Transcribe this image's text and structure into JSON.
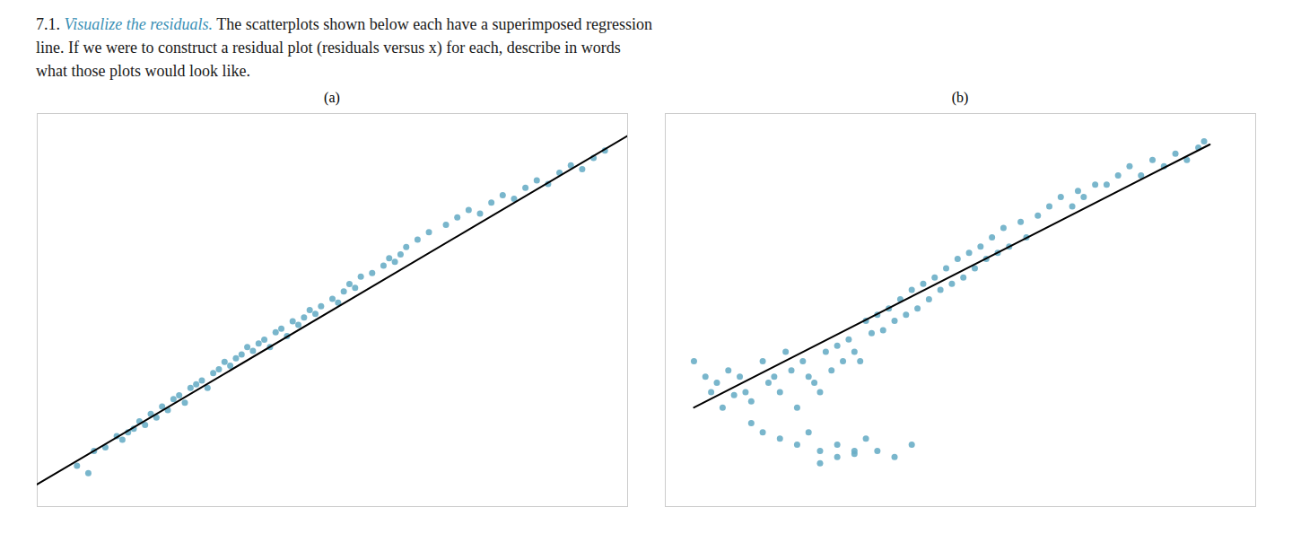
{
  "title": [
    [
      {
        "text": "7.1. ",
        "color": "#1a1a1a"
      },
      {
        "text": "Visualize the residuals.",
        "color": "#3a8fb5",
        "style": "italic"
      },
      {
        "text": " The scatterplots shown below each have a superimposed regression",
        "color": "#1a1a1a"
      }
    ],
    [
      {
        "text": "line. If we were to construct a residual plot (residuals versus x) for each, describe in words",
        "color": "#1a1a1a"
      }
    ],
    [
      {
        "text": "what those plots would look like.",
        "color": "#1a1a1a"
      }
    ]
  ],
  "chart_data": [
    {
      "type": "scatter",
      "title": "(a)",
      "xlim": [
        -0.02,
        1.02
      ],
      "ylim": [
        -0.08,
        0.98
      ],
      "tick_labels": false,
      "grid": false,
      "series": [
        {
          "type": "scatter",
          "color": "#6aaec6",
          "x": [
            0.05,
            0.07,
            0.08,
            0.1,
            0.12,
            0.13,
            0.14,
            0.15,
            0.16,
            0.17,
            0.18,
            0.19,
            0.2,
            0.21,
            0.22,
            0.23,
            0.24,
            0.25,
            0.26,
            0.27,
            0.28,
            0.29,
            0.3,
            0.31,
            0.32,
            0.33,
            0.34,
            0.35,
            0.36,
            0.37,
            0.38,
            0.39,
            0.4,
            0.41,
            0.42,
            0.43,
            0.44,
            0.45,
            0.46,
            0.47,
            0.48,
            0.5,
            0.51,
            0.52,
            0.53,
            0.54,
            0.55,
            0.57,
            0.59,
            0.6,
            0.61,
            0.62,
            0.63,
            0.65,
            0.67,
            0.7,
            0.72,
            0.74,
            0.76,
            0.78,
            0.8,
            0.82,
            0.84,
            0.86,
            0.88,
            0.9,
            0.92,
            0.94,
            0.96,
            0.98
          ],
          "values": [
            0.03,
            0.01,
            0.07,
            0.08,
            0.11,
            0.1,
            0.12,
            0.13,
            0.15,
            0.14,
            0.17,
            0.16,
            0.19,
            0.18,
            0.21,
            0.22,
            0.2,
            0.24,
            0.25,
            0.26,
            0.24,
            0.28,
            0.29,
            0.31,
            0.3,
            0.32,
            0.33,
            0.35,
            0.34,
            0.36,
            0.37,
            0.35,
            0.39,
            0.4,
            0.38,
            0.42,
            0.41,
            0.43,
            0.45,
            0.44,
            0.46,
            0.48,
            0.47,
            0.5,
            0.52,
            0.51,
            0.54,
            0.55,
            0.57,
            0.59,
            0.58,
            0.6,
            0.62,
            0.64,
            0.66,
            0.68,
            0.7,
            0.72,
            0.71,
            0.74,
            0.76,
            0.75,
            0.78,
            0.8,
            0.79,
            0.82,
            0.84,
            0.83,
            0.86,
            0.88
          ]
        },
        {
          "type": "line",
          "color": "black",
          "x": [
            -0.02,
            1.02
          ],
          "values": [
            -0.02,
            0.92
          ]
        }
      ]
    },
    {
      "type": "scatter",
      "title": "(b)",
      "xlim": [
        0.05,
        1.08
      ],
      "ylim": [
        -0.12,
        1.15
      ],
      "tick_labels": false,
      "grid": false,
      "series": [
        {
          "type": "scatter",
          "color": "#6aaec6",
          "x": [
            0.1,
            0.12,
            0.13,
            0.14,
            0.15,
            0.16,
            0.17,
            0.18,
            0.19,
            0.2,
            0.22,
            0.23,
            0.24,
            0.25,
            0.26,
            0.27,
            0.28,
            0.29,
            0.3,
            0.31,
            0.32,
            0.33,
            0.34,
            0.35,
            0.36,
            0.37,
            0.38,
            0.39,
            0.4,
            0.41,
            0.42,
            0.43,
            0.44,
            0.45,
            0.46,
            0.47,
            0.48,
            0.49,
            0.5,
            0.51,
            0.52,
            0.53,
            0.54,
            0.55,
            0.56,
            0.57,
            0.58,
            0.59,
            0.6,
            0.61,
            0.62,
            0.63,
            0.64,
            0.65,
            0.67,
            0.68,
            0.7,
            0.72,
            0.74,
            0.76,
            0.77,
            0.78,
            0.8,
            0.82,
            0.84,
            0.86,
            0.88,
            0.9,
            0.92,
            0.94,
            0.96,
            0.98,
            0.99,
            0.2,
            0.22,
            0.25,
            0.28,
            0.3,
            0.32,
            0.35,
            0.38,
            0.4,
            0.42,
            0.45,
            0.48,
            0.32,
            0.35,
            0.38
          ],
          "values": [
            0.35,
            0.3,
            0.25,
            0.28,
            0.2,
            0.32,
            0.24,
            0.3,
            0.25,
            0.22,
            0.35,
            0.28,
            0.3,
            0.25,
            0.38,
            0.32,
            0.2,
            0.35,
            0.3,
            0.28,
            0.25,
            0.38,
            0.32,
            0.4,
            0.35,
            0.42,
            0.38,
            0.35,
            0.48,
            0.44,
            0.5,
            0.45,
            0.52,
            0.48,
            0.55,
            0.5,
            0.58,
            0.52,
            0.6,
            0.55,
            0.62,
            0.58,
            0.65,
            0.6,
            0.68,
            0.62,
            0.7,
            0.65,
            0.72,
            0.68,
            0.75,
            0.7,
            0.78,
            0.72,
            0.8,
            0.75,
            0.82,
            0.85,
            0.88,
            0.85,
            0.9,
            0.88,
            0.92,
            0.92,
            0.95,
            0.98,
            0.95,
            1.0,
            0.98,
            1.02,
            1.0,
            1.04,
            1.06,
            0.15,
            0.12,
            0.1,
            0.08,
            0.12,
            0.06,
            0.08,
            0.05,
            0.1,
            0.06,
            0.04,
            0.08,
            0.02,
            0.04,
            0.06
          ]
        },
        {
          "type": "line",
          "color": "black",
          "x": [
            0.1,
            1.0
          ],
          "values": [
            0.2,
            1.05
          ]
        }
      ]
    }
  ]
}
